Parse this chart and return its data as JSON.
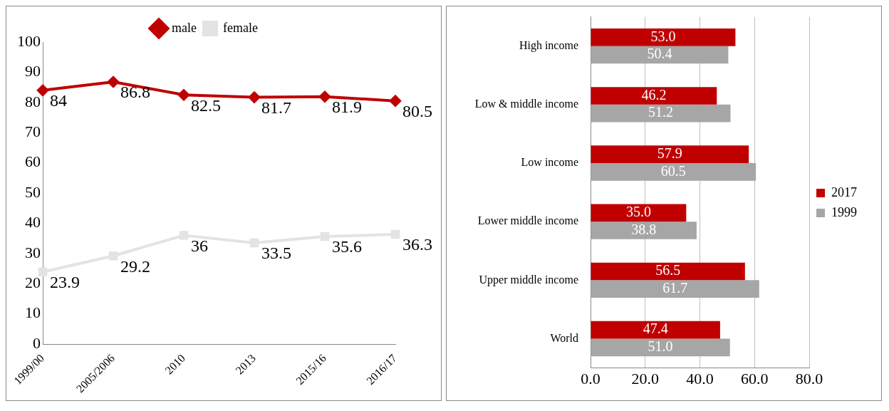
{
  "chart_data": [
    {
      "type": "line",
      "categories": [
        "1999/00",
        "2005/2006",
        "2010",
        "2013",
        "2015/16",
        "2016/17"
      ],
      "series": [
        {
          "name": "male",
          "color": "#c00000",
          "marker": "diamond",
          "values": [
            84,
            86.8,
            82.5,
            81.7,
            81.9,
            80.5
          ]
        },
        {
          "name": "female",
          "color": "#e3e3e3",
          "marker": "square",
          "values": [
            23.9,
            29.2,
            36,
            33.5,
            35.6,
            36.3
          ]
        }
      ],
      "ylim": [
        0,
        100
      ],
      "yticks": [
        0,
        10,
        20,
        30,
        40,
        50,
        60,
        70,
        80,
        90,
        100
      ],
      "grid": false,
      "legend": "top",
      "data_labels": true
    },
    {
      "type": "bar",
      "orientation": "horizontal",
      "categories": [
        "High income",
        "Low & middle income",
        "Low income",
        "Lower middle income",
        "Upper middle income",
        "World"
      ],
      "series": [
        {
          "name": "2017",
          "color": "#c00000",
          "values": [
            53.0,
            46.2,
            57.9,
            35.0,
            56.5,
            47.4
          ],
          "value_labels": [
            "53.0",
            "46.2",
            "57.9",
            "35.0",
            "56.5",
            "47.4"
          ]
        },
        {
          "name": "1999",
          "color": "#a6a6a6",
          "values": [
            50.4,
            51.2,
            60.5,
            38.8,
            61.7,
            51.0
          ],
          "value_labels": [
            "50.4",
            "51.2",
            "60.5",
            "38.8",
            "61.7",
            "51.0"
          ]
        }
      ],
      "xlim": [
        0,
        80
      ],
      "xticks": [
        {
          "value": 0,
          "label": "0.0"
        },
        {
          "value": 20,
          "label": "20.0"
        },
        {
          "value": 40,
          "label": "40.0"
        },
        {
          "value": 60,
          "label": "60.0"
        },
        {
          "value": 80,
          "label": "80.0"
        }
      ],
      "grid": "x",
      "legend": "right"
    }
  ]
}
